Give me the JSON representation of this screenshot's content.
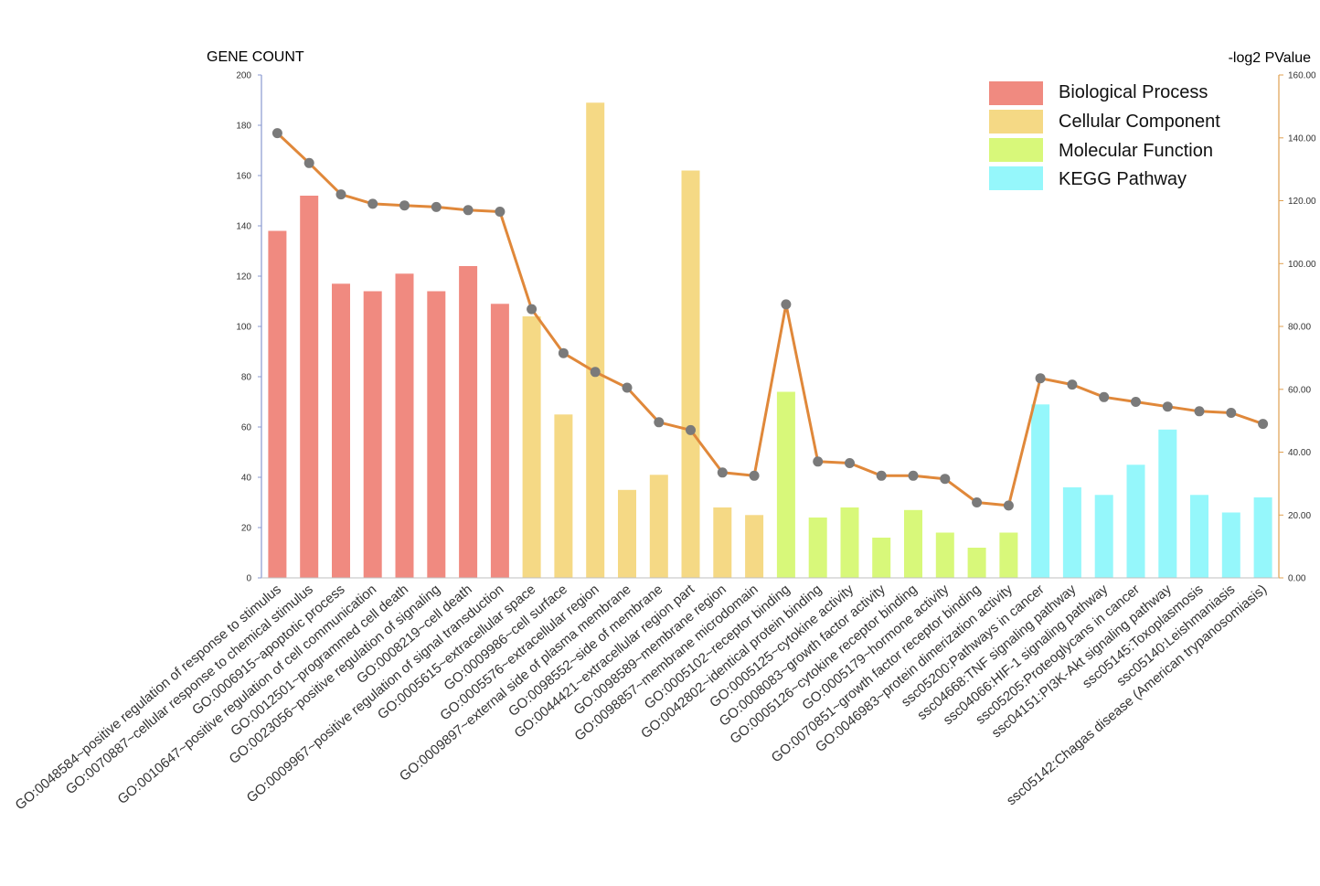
{
  "chart_data": {
    "type": "bar",
    "left_axis_title": "GENE COUNT",
    "right_axis_title": "-log2 PValue",
    "ylim": [
      0,
      200
    ],
    "y_ticks": [
      "0",
      "20",
      "40",
      "60",
      "80",
      "100",
      "120",
      "140",
      "160",
      "180",
      "200"
    ],
    "y2lim": [
      0,
      160
    ],
    "y2_ticks": [
      "0.00",
      "20.00",
      "40.00",
      "60.00",
      "80.00",
      "100.00",
      "120.00",
      "140.00",
      "160.00"
    ],
    "line_color": "#e0883a",
    "marker_color": "#7a7a7a",
    "groups": [
      {
        "name": "Biological Process",
        "color": "#f08a80"
      },
      {
        "name": "Cellular Component",
        "color": "#f5d985"
      },
      {
        "name": "Molecular Function",
        "color": "#d8f87a"
      },
      {
        "name": "KEGG Pathway",
        "color": "#95f7fb"
      }
    ],
    "categories": [
      "GO:0048584~positive regulation of response to stimulus",
      "GO:0070887~cellular response to chemical stimulus",
      "GO:0006915~apoptotic process",
      "GO:0010647~positive regulation of cell communication",
      "GO:0012501~programmed cell death",
      "GO:0023056~positive regulation of signaling",
      "GO:0008219~cell death",
      "GO:0009967~positive regulation of signal transduction",
      "GO:0005615~extracellular space",
      "GO:0009986~cell surface",
      "GO:0005576~extracellular region",
      "GO:0009897~external side of plasma membrane",
      "GO:0098552~side of membrane",
      "GO:0044421~extracellular region part",
      "GO:0098589~membrane region",
      "GO:0098857~membrane microdomain",
      "GO:0005102~receptor binding",
      "GO:0042802~identical protein binding",
      "GO:0005125~cytokine activity",
      "GO:0008083~growth factor activity",
      "GO:0005126~cytokine receptor binding",
      "GO:0005179~hormone activity",
      "GO:0070851~growth factor receptor binding",
      "GO:0046983~protein dimerization activity",
      "ssc05200:Pathways in cancer",
      "ssc04668:TNF signaling pathway",
      "ssc04066:HIF-1 signaling pathway",
      "ssc05205:Proteoglycans in cancer",
      "ssc04151:PI3K-Akt signaling pathway",
      "ssc05145:Toxoplasmosis",
      "ssc05140:Leishmaniasis",
      "ssc05142:Chagas disease (American trypanosomiasis)"
    ],
    "group_index": [
      0,
      0,
      0,
      0,
      0,
      0,
      0,
      0,
      1,
      1,
      1,
      1,
      1,
      1,
      1,
      1,
      2,
      2,
      2,
      2,
      2,
      2,
      2,
      2,
      3,
      3,
      3,
      3,
      3,
      3,
      3,
      3
    ],
    "gene_count": [
      138,
      152,
      117,
      114,
      121,
      114,
      124,
      109,
      104,
      65,
      189,
      35,
      41,
      162,
      28,
      25,
      74,
      24,
      28,
      16,
      27,
      18,
      12,
      18,
      69,
      36,
      33,
      45,
      59,
      33,
      26,
      32
    ],
    "neg_log2_pvalue": [
      141.5,
      132,
      122,
      119,
      118.5,
      118,
      117,
      116.5,
      85.5,
      71.5,
      65.5,
      60.5,
      49.5,
      47,
      33.5,
      32.5,
      87,
      37,
      36.5,
      32.5,
      32.5,
      31.5,
      24,
      23,
      63.5,
      61.5,
      57.5,
      56,
      54.5,
      53,
      52.5,
      49
    ]
  }
}
